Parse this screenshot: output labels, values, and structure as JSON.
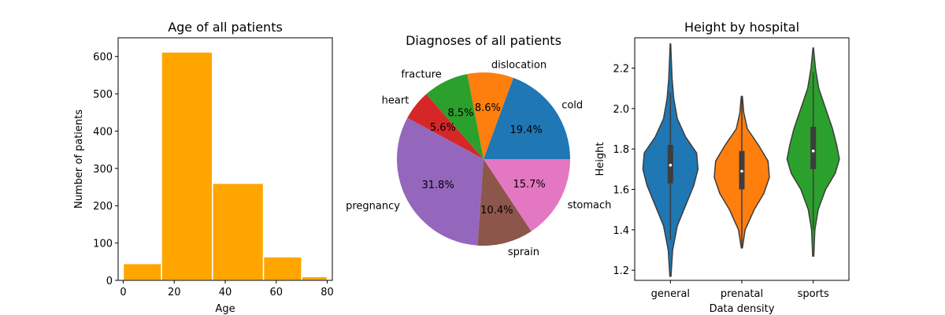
{
  "chart_data": [
    {
      "type": "bar",
      "subtype": "histogram",
      "title": "Age of all patients",
      "xlabel": "Age",
      "ylabel": "Number of patients",
      "bins": [
        [
          0,
          15
        ],
        [
          15,
          35
        ],
        [
          35,
          55
        ],
        [
          55,
          70
        ],
        [
          70,
          80
        ]
      ],
      "values": [
        45,
        612,
        260,
        63,
        10
      ],
      "color": "#ffa500",
      "xlim": [
        -2,
        82
      ],
      "ylim": [
        0,
        650
      ],
      "xticks": [
        0,
        20,
        40,
        60,
        80
      ],
      "yticks": [
        0,
        100,
        200,
        300,
        400,
        500,
        600
      ],
      "grid": false
    },
    {
      "type": "pie",
      "title": "Diagnoses of all patients",
      "labels": [
        "cold",
        "dislocation",
        "fracture",
        "heart",
        "pregnancy",
        "sprain",
        "stomach"
      ],
      "values": [
        19.4,
        8.6,
        8.5,
        5.6,
        31.8,
        10.4,
        15.7
      ],
      "pct_labels": [
        "19.4%",
        "8.6%",
        "8.5%",
        "5.6%",
        "31.8%",
        "10.4%",
        "15.7%"
      ],
      "colors": [
        "#1f77b4",
        "#ff7f0e",
        "#2ca02c",
        "#d62728",
        "#9467bd",
        "#8c564b",
        "#e377c2"
      ]
    },
    {
      "type": "violin",
      "title": "Height by hospital",
      "xlabel": "Data density",
      "ylabel": "Height",
      "categories": [
        "general",
        "prenatal",
        "sports"
      ],
      "colors": [
        "#1f77b4",
        "#ff7f0e",
        "#2ca02c"
      ],
      "ylim": [
        1.15,
        2.35
      ],
      "yticks": [
        1.2,
        1.4,
        1.6,
        1.8,
        2.0,
        2.2
      ],
      "ytick_labels": [
        "1.2",
        "1.4",
        "1.6",
        "1.8",
        "2.0",
        "2.2"
      ],
      "series": [
        {
          "name": "general",
          "min": 1.17,
          "max": 2.32,
          "q1": 1.63,
          "median": 1.72,
          "q3": 1.82,
          "whisker_low": 1.35,
          "whisker_high": 2.08,
          "density": [
            [
              1.17,
              0.02
            ],
            [
              1.3,
              0.08
            ],
            [
              1.42,
              0.25
            ],
            [
              1.52,
              0.55
            ],
            [
              1.62,
              0.85
            ],
            [
              1.7,
              1.0
            ],
            [
              1.78,
              0.95
            ],
            [
              1.86,
              0.55
            ],
            [
              1.95,
              0.25
            ],
            [
              2.05,
              0.12
            ],
            [
              2.15,
              0.06
            ],
            [
              2.25,
              0.03
            ],
            [
              2.32,
              0.01
            ]
          ]
        },
        {
          "name": "prenatal",
          "min": 1.31,
          "max": 2.06,
          "q1": 1.6,
          "median": 1.69,
          "q3": 1.79,
          "whisker_low": 1.31,
          "whisker_high": 2.06,
          "density": [
            [
              1.31,
              0.02
            ],
            [
              1.4,
              0.12
            ],
            [
              1.5,
              0.45
            ],
            [
              1.58,
              0.8
            ],
            [
              1.66,
              1.0
            ],
            [
              1.74,
              0.95
            ],
            [
              1.82,
              0.6
            ],
            [
              1.9,
              0.2
            ],
            [
              1.98,
              0.07
            ],
            [
              2.06,
              0.02
            ]
          ]
        },
        {
          "name": "sports",
          "min": 1.27,
          "max": 2.3,
          "q1": 1.7,
          "median": 1.79,
          "q3": 1.91,
          "whisker_low": 1.4,
          "whisker_high": 2.18,
          "density": [
            [
              1.27,
              0.02
            ],
            [
              1.4,
              0.06
            ],
            [
              1.5,
              0.18
            ],
            [
              1.6,
              0.45
            ],
            [
              1.68,
              0.8
            ],
            [
              1.75,
              0.95
            ],
            [
              1.82,
              0.85
            ],
            [
              1.9,
              0.7
            ],
            [
              2.0,
              0.45
            ],
            [
              2.1,
              0.2
            ],
            [
              2.2,
              0.08
            ],
            [
              2.3,
              0.01
            ]
          ]
        }
      ]
    }
  ]
}
